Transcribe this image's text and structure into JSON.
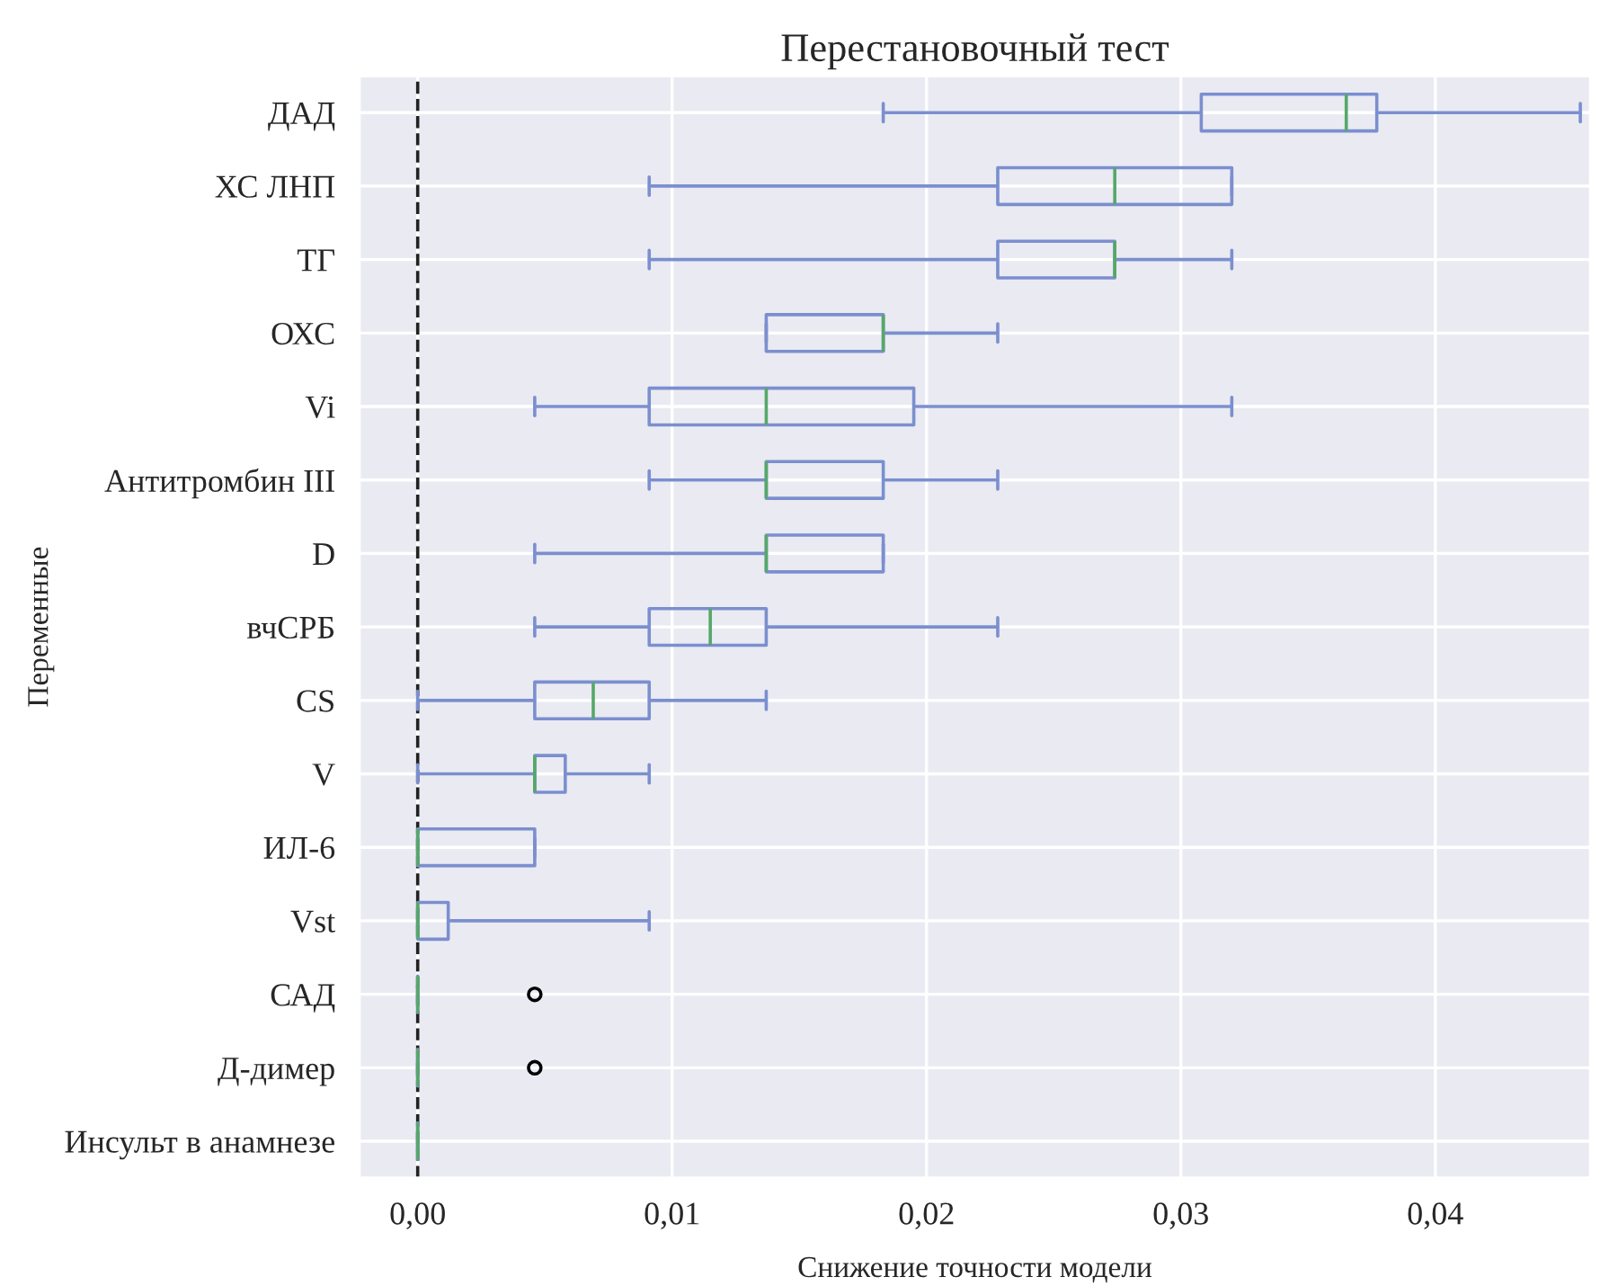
{
  "chart_data": {
    "type": "box",
    "orientation": "horizontal",
    "title": "Перестановочный тест",
    "xlabel": "Снижение точности модели",
    "ylabel": "Переменные",
    "categories": [
      "ДАД",
      "ХС ЛНП",
      "ТГ",
      "ОХС",
      "Vi",
      "Антитромбин III",
      "D",
      "вчСРБ",
      "CS",
      "V",
      "ИЛ-6",
      "Vst",
      "САД",
      "Д-димер",
      "Инсульт в анамнезе"
    ],
    "series": [
      {
        "color": "#7b8fcf",
        "boxes": [
          {
            "low": 0.0183,
            "q1": 0.0308,
            "median": 0.0365,
            "q3": 0.0377,
            "high": 0.0457
          },
          {
            "low": 0.0091,
            "q1": 0.0228,
            "median": 0.0274,
            "q3": 0.032,
            "high": 0.032
          },
          {
            "low": 0.0091,
            "q1": 0.0228,
            "median": 0.0274,
            "q3": 0.0274,
            "high": 0.032
          },
          {
            "low": 0.0137,
            "q1": 0.0137,
            "median": 0.0183,
            "q3": 0.0183,
            "high": 0.0228
          },
          {
            "low": 0.0046,
            "q1": 0.0091,
            "median": 0.0137,
            "q3": 0.0195,
            "high": 0.032
          },
          {
            "low": 0.0091,
            "q1": 0.0137,
            "median": 0.0137,
            "q3": 0.0183,
            "high": 0.0228
          },
          {
            "low": 0.0046,
            "q1": 0.0137,
            "median": 0.0137,
            "q3": 0.0183,
            "high": 0.0183
          },
          {
            "low": 0.0046,
            "q1": 0.0091,
            "median": 0.0115,
            "q3": 0.0137,
            "high": 0.0228
          },
          {
            "low": 0.0,
            "q1": 0.0046,
            "median": 0.0069,
            "q3": 0.0091,
            "high": 0.0137
          },
          {
            "low": 0.0,
            "q1": 0.0046,
            "median": 0.0046,
            "q3": 0.0058,
            "high": 0.0091
          },
          {
            "low": 0.0,
            "q1": 0.0,
            "median": 0.0,
            "q3": 0.0046,
            "high": 0.0046
          },
          {
            "low": 0.0,
            "q1": 0.0,
            "median": 0.0,
            "q3": 0.0012,
            "high": 0.0091
          },
          {
            "low": 0.0,
            "q1": 0.0,
            "median": 0.0,
            "q3": 0.0,
            "high": 0.0,
            "outliers": [
              0.0046
            ]
          },
          {
            "low": 0.0,
            "q1": 0.0,
            "median": 0.0,
            "q3": 0.0,
            "high": 0.0,
            "outliers": [
              0.0046
            ]
          },
          {
            "low": 0.0,
            "q1": 0.0,
            "median": 0.0,
            "q3": 0.0,
            "high": 0.0
          }
        ]
      }
    ],
    "xlim": [
      -0.0023,
      0.0461
    ],
    "xticks": [
      {
        "value": 0,
        "label": "0,00"
      },
      {
        "value": 0.01,
        "label": "0,01"
      },
      {
        "value": 0.02,
        "label": "0,02"
      },
      {
        "value": 0.03,
        "label": "0,03"
      },
      {
        "value": 0.04,
        "label": "0,04"
      }
    ],
    "ref_lines": [
      {
        "axis": "x",
        "value": 0,
        "color": "#222222",
        "line_style": "dashed"
      }
    ],
    "grid": true
  }
}
